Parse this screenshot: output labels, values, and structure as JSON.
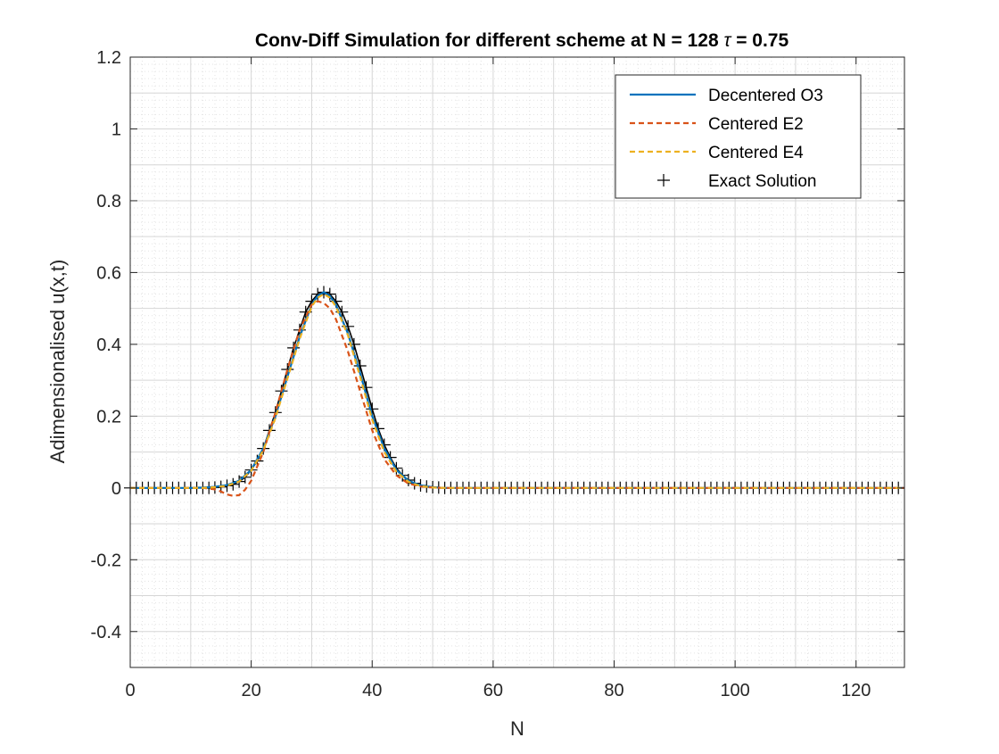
{
  "chart_data": {
    "type": "line",
    "title_main": "Conv-Diff Simulation for different scheme at N = 128 ",
    "title_symbol": "τ",
    "title_tail": " = 0.75",
    "xlabel": "N",
    "ylabel": "Adimensionalised u(x,t)",
    "xlim": [
      0,
      128
    ],
    "ylim": [
      -0.5,
      1.2
    ],
    "xticks": [
      0,
      20,
      40,
      60,
      80,
      100,
      120
    ],
    "xtick_labels": [
      "0",
      "20",
      "40",
      "60",
      "80",
      "100",
      "120"
    ],
    "yticks": [
      -0.4,
      -0.2,
      0,
      0.2,
      0.4,
      0.6,
      0.8,
      1,
      1.2
    ],
    "ytick_labels": [
      "-0.4",
      "-0.2",
      "0",
      "0.2",
      "0.4",
      "0.6",
      "0.8",
      "1",
      "1.2"
    ],
    "grid": true,
    "minor_grid": true,
    "legend_position": "top-right",
    "colors": {
      "decentered_o3": "#0072BD",
      "centered_e2": "#D95319",
      "centered_e4": "#EDB120",
      "exact": "#000000"
    },
    "series": [
      {
        "name": "Decentered O3",
        "style": "solid",
        "x": [
          0,
          10,
          12,
          14,
          16,
          18,
          20,
          22,
          24,
          26,
          28,
          30,
          31,
          32,
          33,
          34,
          36,
          38,
          40,
          42,
          44,
          46,
          48,
          50,
          52,
          54,
          60,
          80,
          100,
          128
        ],
        "y": [
          0,
          0,
          0.001,
          0.003,
          0.008,
          0.02,
          0.05,
          0.11,
          0.2,
          0.31,
          0.42,
          0.51,
          0.535,
          0.545,
          0.535,
          0.51,
          0.43,
          0.32,
          0.2,
          0.11,
          0.05,
          0.02,
          0.007,
          0.002,
          0,
          0,
          0,
          0,
          0,
          0
        ]
      },
      {
        "name": "Centered E2",
        "style": "dashed",
        "x": [
          0,
          10,
          12,
          14,
          15,
          16,
          17,
          18,
          19,
          20,
          22,
          24,
          26,
          28,
          30,
          31,
          32,
          33,
          34,
          36,
          38,
          40,
          42,
          44,
          46,
          48,
          50,
          52,
          54,
          60,
          80,
          100,
          128
        ],
        "y": [
          0,
          0,
          0,
          -0.004,
          -0.01,
          -0.018,
          -0.022,
          -0.02,
          -0.005,
          0.02,
          0.1,
          0.21,
          0.33,
          0.44,
          0.51,
          0.52,
          0.515,
          0.5,
          0.47,
          0.38,
          0.27,
          0.16,
          0.08,
          0.035,
          0.012,
          0.004,
          0.001,
          0,
          0,
          0,
          0,
          0,
          0
        ]
      },
      {
        "name": "Centered E4",
        "style": "dashed",
        "x": [
          0,
          10,
          12,
          14,
          16,
          18,
          20,
          22,
          24,
          26,
          28,
          30,
          31,
          32,
          33,
          34,
          36,
          38,
          40,
          42,
          44,
          46,
          48,
          50,
          52,
          54,
          60,
          80,
          100,
          128
        ],
        "y": [
          0,
          0,
          0,
          0.002,
          0.006,
          0.018,
          0.048,
          0.105,
          0.195,
          0.305,
          0.415,
          0.505,
          0.53,
          0.54,
          0.53,
          0.505,
          0.425,
          0.31,
          0.19,
          0.1,
          0.045,
          0.017,
          0.005,
          0.001,
          0,
          0,
          0,
          0,
          0,
          0
        ]
      },
      {
        "name": "Exact Solution",
        "style": "marker-plus",
        "x": [
          0,
          1,
          2,
          3,
          4,
          5,
          6,
          7,
          8,
          9,
          10,
          11,
          12,
          13,
          14,
          15,
          16,
          17,
          18,
          19,
          20,
          21,
          22,
          23,
          24,
          25,
          26,
          27,
          28,
          29,
          30,
          31,
          32,
          33,
          34,
          35,
          36,
          37,
          38,
          39,
          40,
          41,
          42,
          43,
          44,
          45,
          46,
          47,
          48,
          49,
          50,
          51,
          52,
          53,
          54,
          55,
          56,
          57,
          58,
          59,
          60,
          61,
          62,
          63,
          64,
          65,
          66,
          67,
          68,
          69,
          70,
          71,
          72,
          73,
          74,
          75,
          76,
          77,
          78,
          79,
          80,
          81,
          82,
          83,
          84,
          85,
          86,
          87,
          88,
          89,
          90,
          91,
          92,
          93,
          94,
          95,
          96,
          97,
          98,
          99,
          100,
          101,
          102,
          103,
          104,
          105,
          106,
          107,
          108,
          109,
          110,
          111,
          112,
          113,
          114,
          115,
          116,
          117,
          118,
          119,
          120,
          121,
          122,
          123,
          124,
          125,
          126,
          127
        ],
        "y": [
          0,
          0,
          0,
          0,
          0,
          0,
          0,
          0,
          0,
          0,
          0,
          0,
          0,
          0,
          0.001,
          0.003,
          0.006,
          0.01,
          0.018,
          0.03,
          0.05,
          0.075,
          0.11,
          0.16,
          0.21,
          0.27,
          0.33,
          0.39,
          0.44,
          0.49,
          0.52,
          0.54,
          0.545,
          0.54,
          0.52,
          0.49,
          0.45,
          0.4,
          0.34,
          0.28,
          0.22,
          0.165,
          0.12,
          0.085,
          0.055,
          0.035,
          0.022,
          0.013,
          0.007,
          0.004,
          0.002,
          0.001,
          0,
          0,
          0,
          0,
          0,
          0,
          0,
          0,
          0,
          0,
          0,
          0,
          0,
          0,
          0,
          0,
          0,
          0,
          0,
          0,
          0,
          0,
          0,
          0,
          0,
          0,
          0,
          0,
          0,
          0,
          0,
          0,
          0,
          0,
          0,
          0,
          0,
          0,
          0,
          0,
          0,
          0,
          0,
          0,
          0,
          0,
          0,
          0,
          0,
          0,
          0,
          0,
          0,
          0,
          0,
          0,
          0,
          0,
          0,
          0,
          0,
          0,
          0,
          0,
          0,
          0,
          0,
          0,
          0,
          0,
          0,
          0,
          0,
          0,
          0,
          0
        ]
      }
    ]
  }
}
